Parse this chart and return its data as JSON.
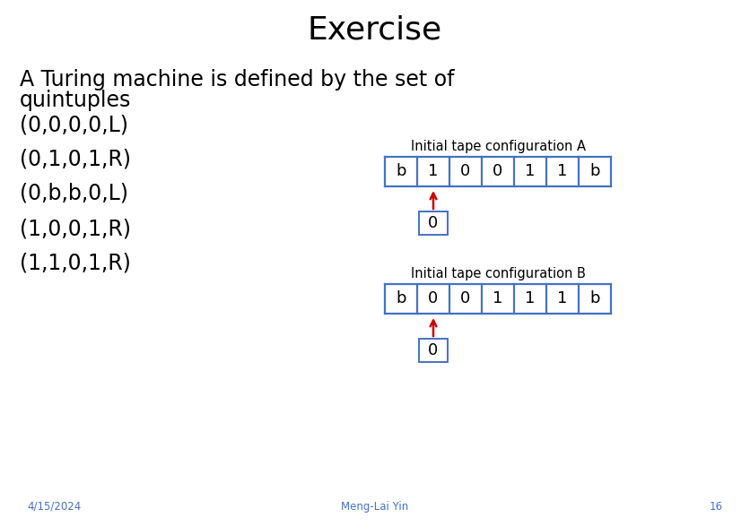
{
  "title": "Exercise",
  "title_fontsize": 26,
  "bg_color": "#ffffff",
  "text_color": "#000000",
  "body_line1": "A Turing machine is defined by the set of",
  "body_line2": "quintuples",
  "body_fontsize": 17,
  "quintuples": [
    "(0,0,0,0,L)",
    "(0,1,0,1,R)",
    "(0,b,b,0,L)",
    "(1,0,0,1,R)",
    "(1,1,0,1,R)"
  ],
  "quintuples_fontsize": 17,
  "tape_A_label": "Initial tape configuration A",
  "tape_A_cells": [
    "b",
    "1",
    "0",
    "0",
    "1",
    "1",
    "b"
  ],
  "tape_A_state": "0",
  "tape_A_pointer": 1,
  "tape_B_label": "Initial tape configuration B",
  "tape_B_cells": [
    "b",
    "0",
    "0",
    "1",
    "1",
    "1",
    "b"
  ],
  "tape_B_state": "0",
  "tape_B_pointer": 1,
  "tape_label_fontsize": 10.5,
  "tape_cell_fontsize": 13,
  "tape_state_fontsize": 13,
  "tape_color": "#4472c4",
  "tape_fill": "#ffffff",
  "arrow_color": "#cc0000",
  "footer_date": "4/15/2024",
  "footer_name": "Meng-Lai Yin",
  "footer_page": "16",
  "footer_fontsize": 8.5,
  "footer_color": "#4472c4"
}
